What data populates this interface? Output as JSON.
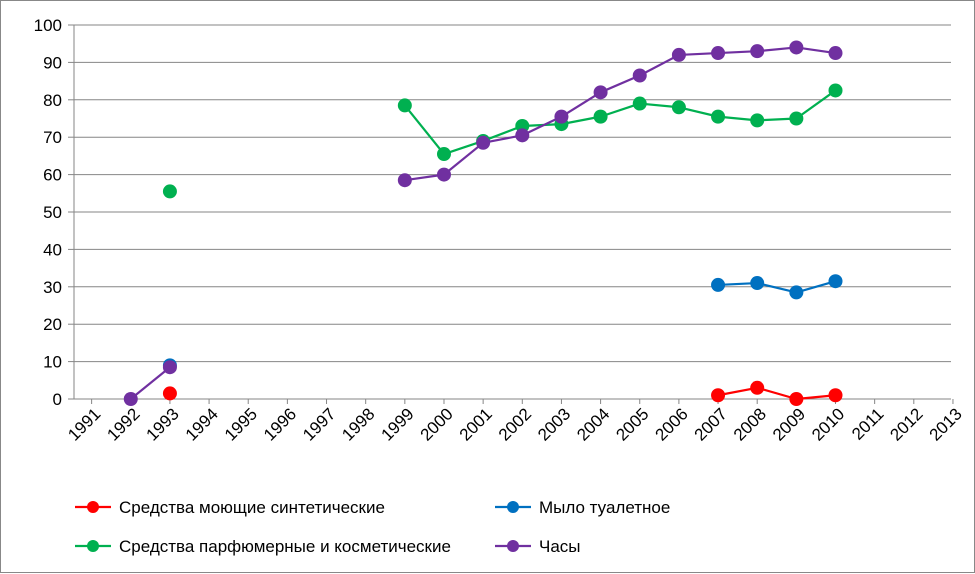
{
  "chart_data": {
    "type": "line",
    "title": "",
    "xlabel": "",
    "ylabel": "",
    "ylim": [
      0,
      100
    ],
    "yticks": [
      0,
      10,
      20,
      30,
      40,
      50,
      60,
      70,
      80,
      90,
      100
    ],
    "categories": [
      "1991",
      "1992",
      "1993",
      "1994",
      "1995",
      "1996",
      "1997",
      "1998",
      "1999",
      "2000",
      "2001",
      "2002",
      "2003",
      "2004",
      "2005",
      "2006",
      "2007",
      "2008",
      "2009",
      "2010",
      "2011",
      "2012",
      "2013"
    ],
    "grid": true,
    "legend_position": "bottom",
    "series": [
      {
        "name": "Средства моющие синтетические",
        "color": "#ff0000",
        "values": [
          null,
          null,
          1.5,
          null,
          null,
          null,
          null,
          null,
          null,
          null,
          null,
          null,
          null,
          null,
          null,
          null,
          1,
          3,
          0,
          1,
          null,
          null,
          null
        ]
      },
      {
        "name": "Мыло туалетное",
        "color": "#0070c0",
        "values": [
          null,
          null,
          9,
          null,
          null,
          null,
          null,
          null,
          null,
          null,
          null,
          null,
          null,
          null,
          null,
          null,
          30.5,
          31,
          28.5,
          31.5,
          null,
          null,
          null
        ]
      },
      {
        "name": "Средства парфюмерные и косметические",
        "color": "#00b050",
        "values": [
          null,
          null,
          55.5,
          null,
          null,
          null,
          null,
          null,
          78.5,
          65.5,
          69,
          73,
          73.5,
          75.5,
          79,
          78,
          75.5,
          74.5,
          75,
          82.5,
          null,
          null,
          null
        ]
      },
      {
        "name": "Часы",
        "color": "#7030a0",
        "values": [
          null,
          0,
          8.5,
          null,
          null,
          null,
          null,
          null,
          58.5,
          60,
          68.5,
          70.5,
          75.5,
          82,
          86.5,
          92,
          92.5,
          93,
          94,
          92.5,
          null,
          null,
          null
        ]
      }
    ]
  }
}
